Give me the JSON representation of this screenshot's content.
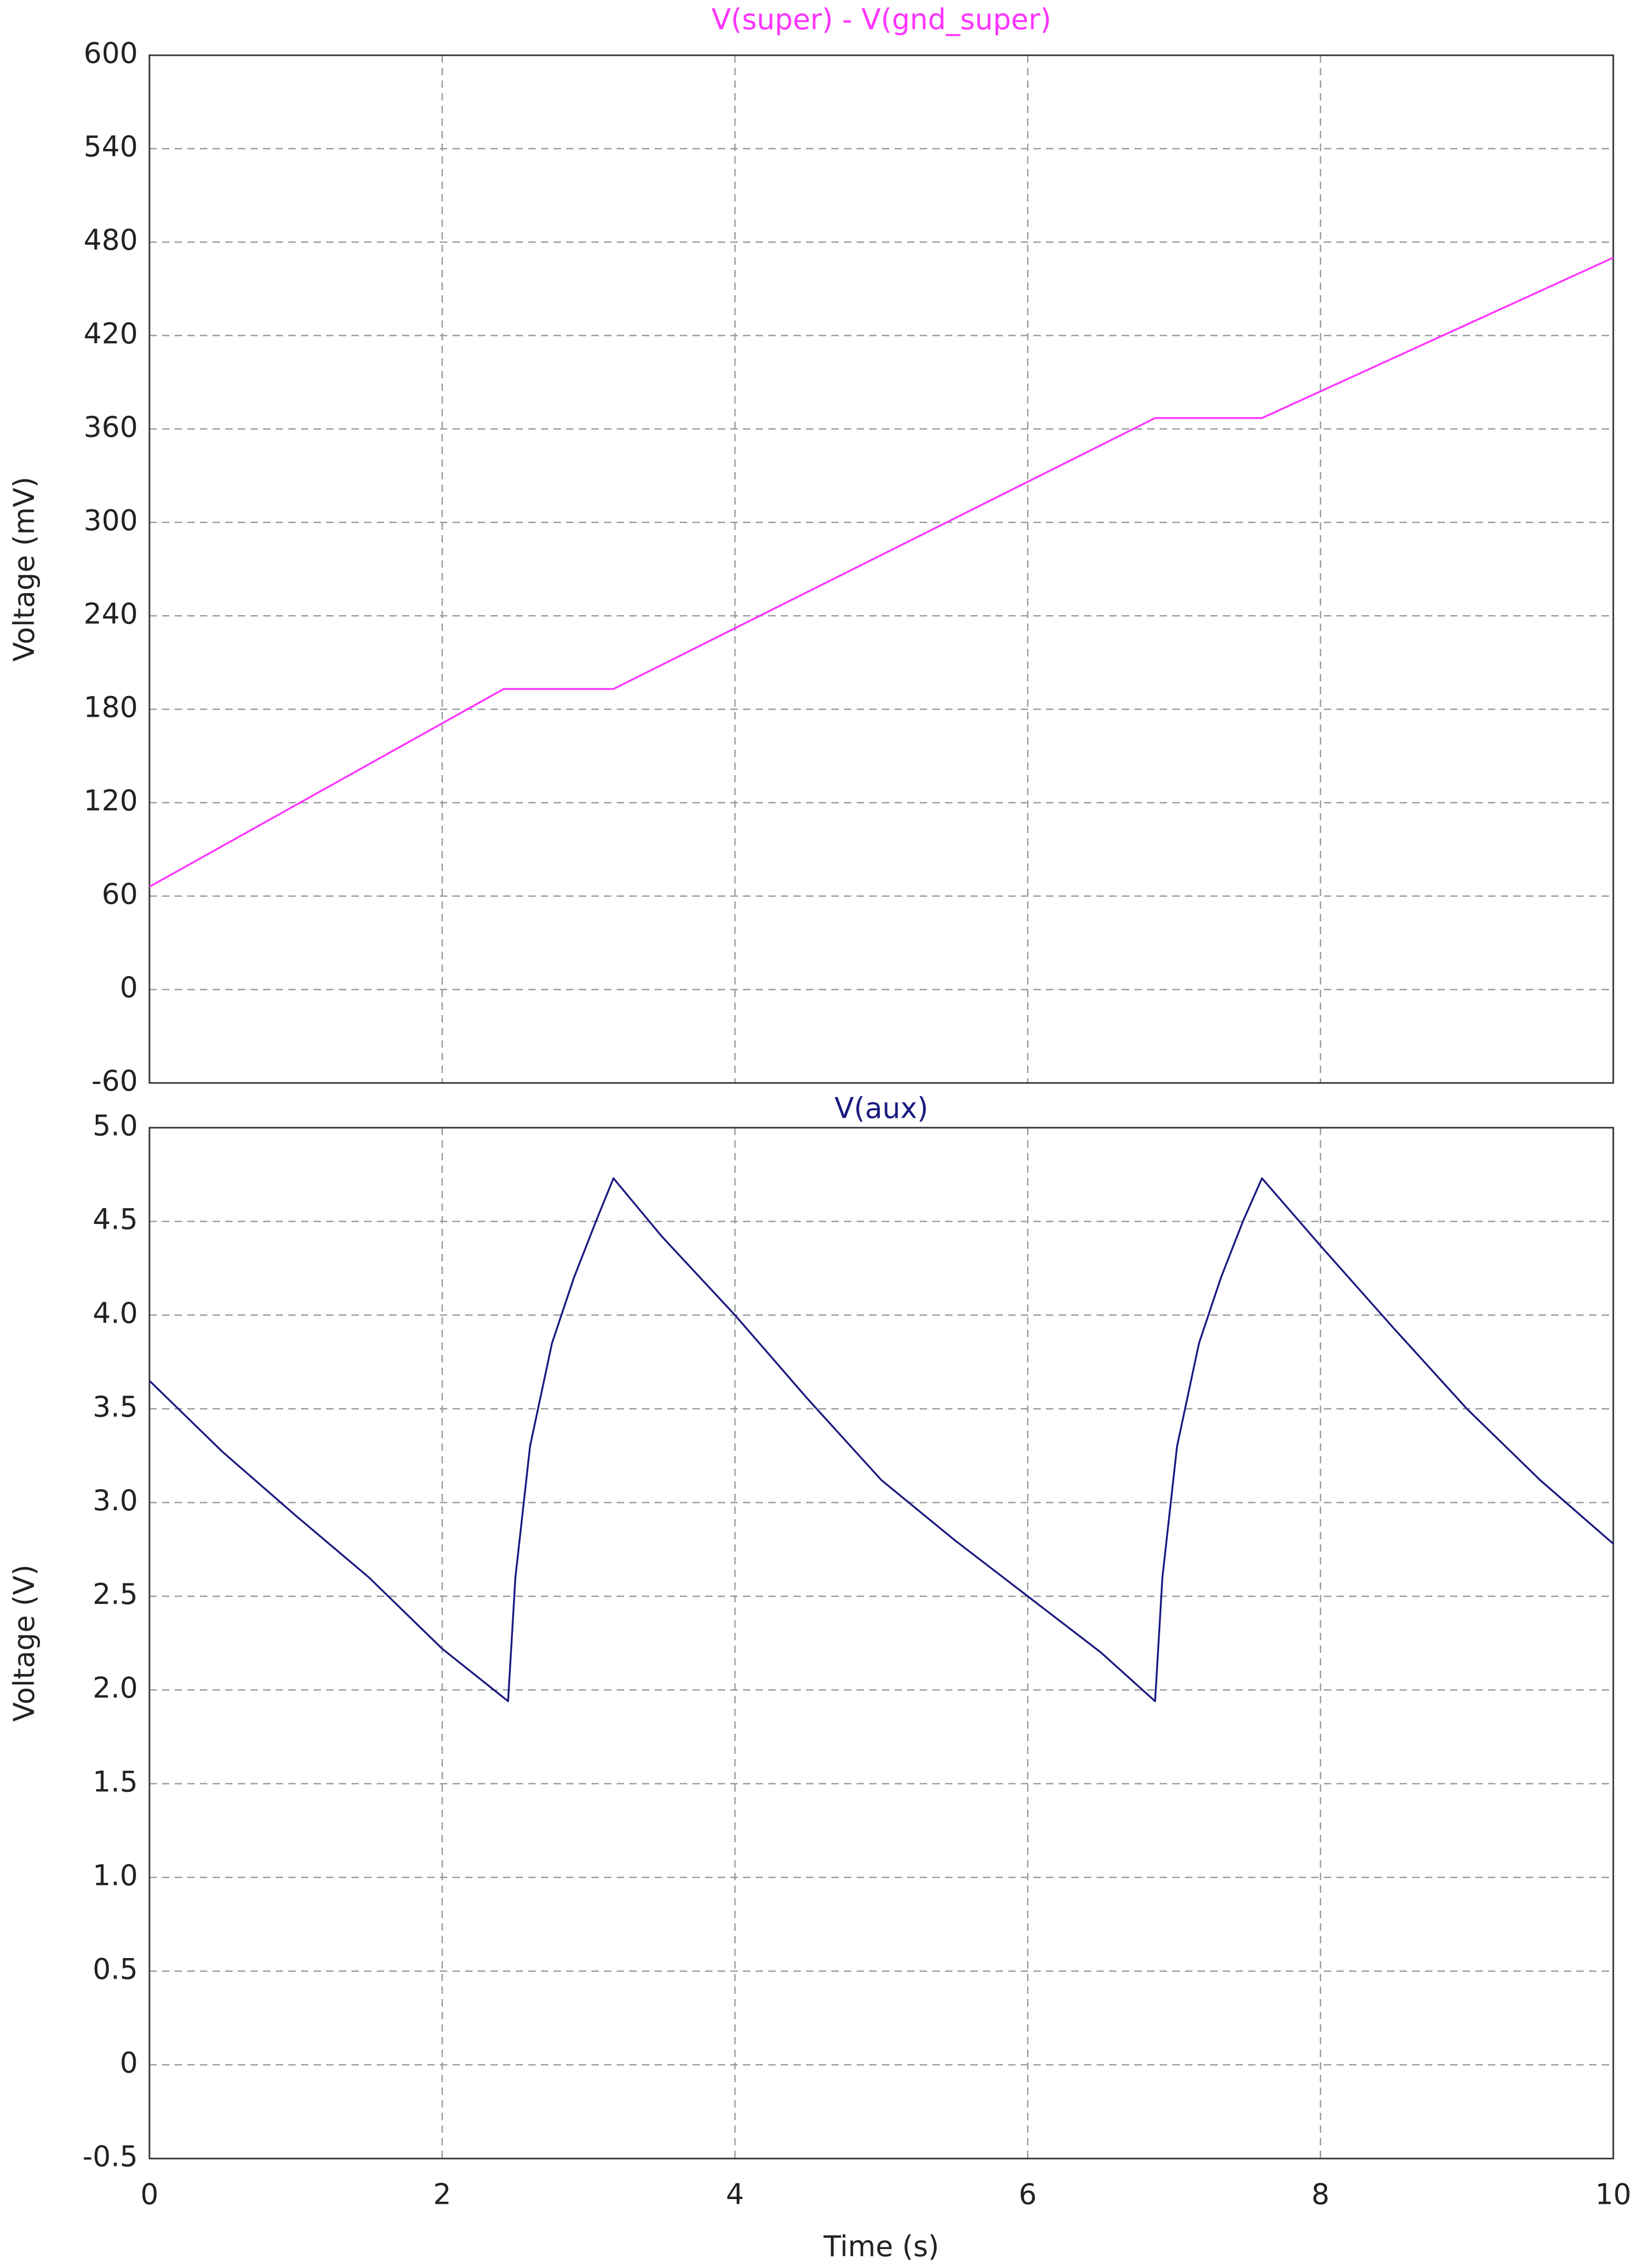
{
  "chart_data": [
    {
      "type": "line",
      "title": "V(super) - V(gnd_super)",
      "ylabel": "Voltage (mV)",
      "x": [
        0,
        2.42,
        3.17,
        6.87,
        7.6,
        10
      ],
      "series": [
        {
          "color": "#ff33ff",
          "values": [
            66,
            193,
            193,
            367,
            367,
            470
          ]
        }
      ],
      "xlim": [
        0,
        10
      ],
      "xticks": [
        0,
        2,
        4,
        6,
        8,
        10
      ],
      "ylim": [
        -60,
        600
      ],
      "yticks": [
        -60,
        0,
        60,
        120,
        180,
        240,
        300,
        360,
        420,
        480,
        540,
        600
      ],
      "grid": true
    },
    {
      "type": "line",
      "title": "V(aux)",
      "ylabel": "Voltage (V)",
      "xlabel": "Time (s)",
      "x": [
        0,
        0.5,
        1,
        1.5,
        2,
        2.45,
        2.5,
        2.6,
        2.75,
        2.9,
        3.05,
        3.17,
        3.5,
        4,
        4.5,
        5,
        5.5,
        6,
        6.5,
        6.87,
        6.92,
        7.02,
        7.17,
        7.32,
        7.47,
        7.6,
        8,
        8.5,
        9,
        9.5,
        10
      ],
      "series": [
        {
          "color": "#1a1a80",
          "values": [
            3.65,
            3.27,
            2.93,
            2.6,
            2.22,
            1.94,
            2.6,
            3.3,
            3.85,
            4.2,
            4.5,
            4.73,
            4.42,
            4.0,
            3.55,
            3.12,
            2.8,
            2.5,
            2.2,
            1.94,
            2.6,
            3.3,
            3.85,
            4.2,
            4.5,
            4.73,
            4.37,
            3.93,
            3.5,
            3.12,
            2.78
          ]
        }
      ],
      "xlim": [
        0,
        10
      ],
      "xticks": [
        0,
        2,
        4,
        6,
        8,
        10
      ],
      "ylim": [
        -0.5,
        5.0
      ],
      "yticks": [
        -0.5,
        0,
        0.5,
        {
          "value": 1,
          "label": "1.0"
        },
        1.5,
        {
          "value": 2,
          "label": "2.0"
        },
        2.5,
        {
          "value": 3,
          "label": "3.0"
        },
        3.5,
        {
          "value": 4,
          "label": "4.0"
        },
        4.5,
        {
          "value": 5,
          "label": "5.0"
        }
      ],
      "grid": true
    }
  ]
}
